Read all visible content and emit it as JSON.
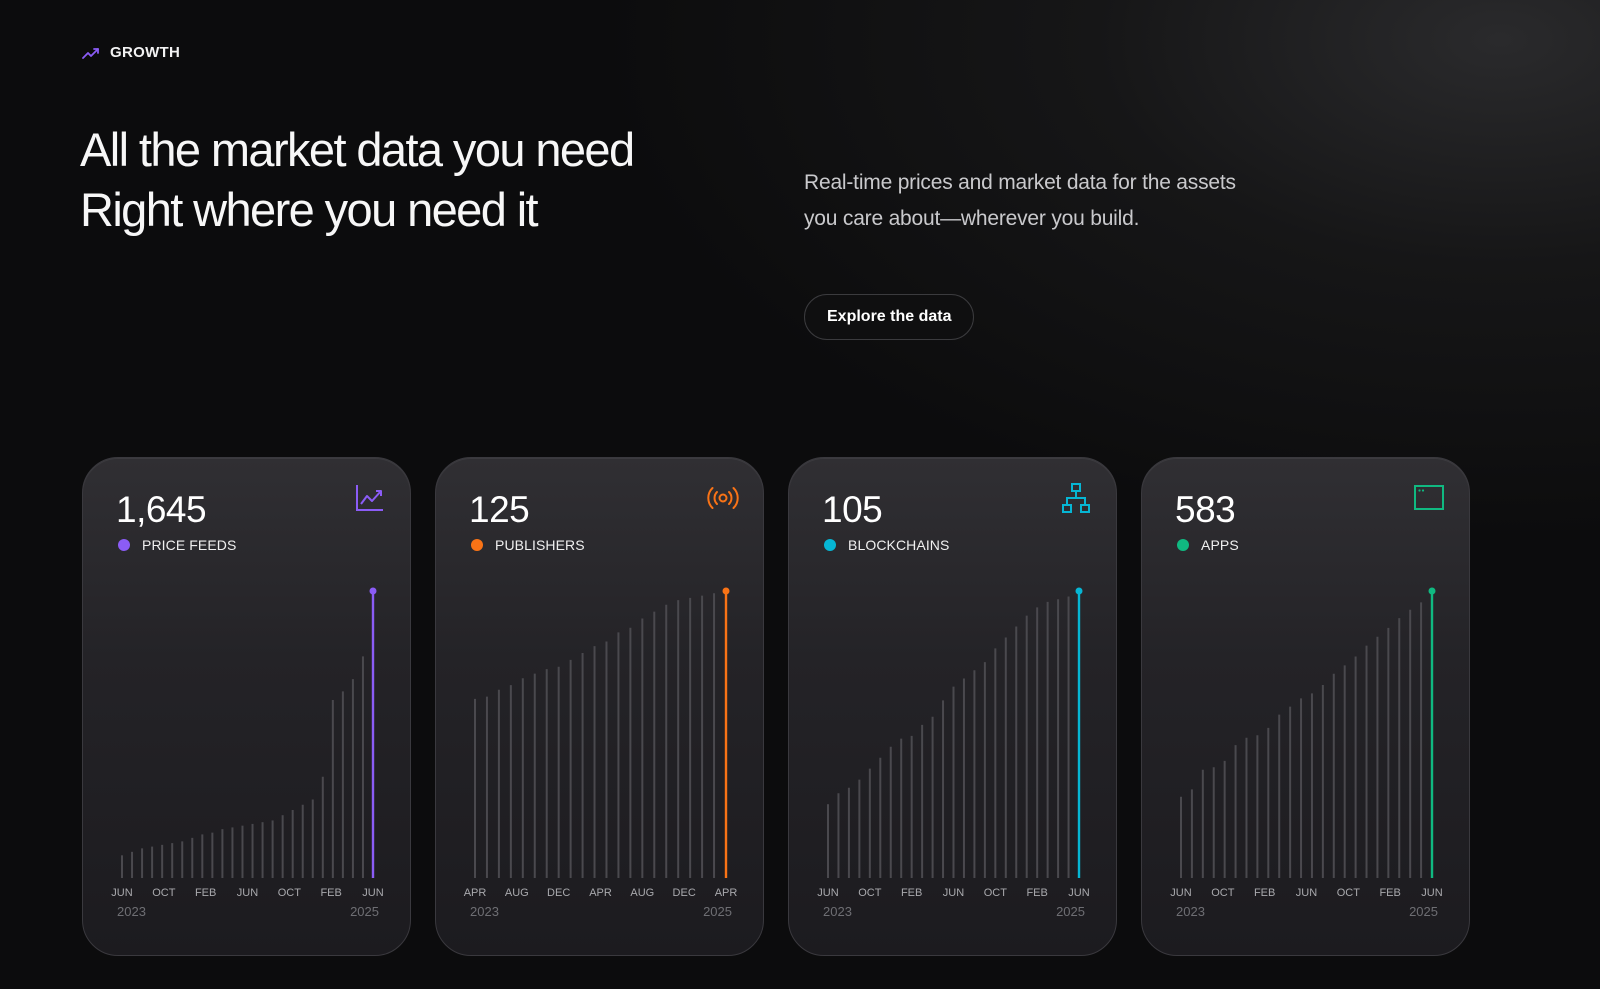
{
  "eyebrow": {
    "icon": "trend-up-icon",
    "label": "GROWTH",
    "color": "#8b5cf6"
  },
  "hero": {
    "line1": "All the market data you need",
    "line2": "Right where you need it",
    "subtext": "Real-time prices and market data for the assets you care about—wherever you build.",
    "cta_label": "Explore the data"
  },
  "cards": [
    {
      "value": "1,645",
      "label": "PRICE FEEDS",
      "color": "#8b5cf6",
      "icon": "line-chart-icon",
      "ticks": [
        "JUN",
        "OCT",
        "FEB",
        "JUN",
        "OCT",
        "FEB",
        "JUN"
      ],
      "year_start": "2023",
      "year_end": "2025"
    },
    {
      "value": "125",
      "label": "PUBLISHERS",
      "color": "#f97316",
      "icon": "broadcast-icon",
      "ticks": [
        "APR",
        "AUG",
        "DEC",
        "APR",
        "AUG",
        "DEC",
        "APR"
      ],
      "year_start": "2023",
      "year_end": "2025"
    },
    {
      "value": "105",
      "label": "BLOCKCHAINS",
      "color": "#06b6d4",
      "icon": "network-icon",
      "ticks": [
        "JUN",
        "OCT",
        "FEB",
        "JUN",
        "OCT",
        "FEB",
        "JUN"
      ],
      "year_start": "2023",
      "year_end": "2025"
    },
    {
      "value": "583",
      "label": "APPS",
      "color": "#10b981",
      "icon": "app-window-icon",
      "ticks": [
        "JUN",
        "OCT",
        "FEB",
        "JUN",
        "OCT",
        "FEB",
        "JUN"
      ],
      "year_start": "2023",
      "year_end": "2025"
    }
  ],
  "chart_data": [
    {
      "type": "bar",
      "xlabel": "",
      "ylabel": "",
      "values": [
        130,
        150,
        170,
        180,
        190,
        200,
        210,
        230,
        250,
        260,
        280,
        290,
        300,
        310,
        320,
        330,
        360,
        390,
        420,
        450,
        580,
        1020,
        1070,
        1140,
        1270,
        1645
      ],
      "ylim": [
        0,
        1645
      ]
    },
    {
      "type": "bar",
      "xlabel": "",
      "ylabel": "",
      "values": [
        78,
        79,
        82,
        84,
        87,
        89,
        91,
        92,
        95,
        98,
        101,
        103,
        107,
        109,
        113,
        116,
        119,
        121,
        122,
        123,
        124,
        125
      ],
      "ylim": [
        0,
        125
      ]
    },
    {
      "type": "bar",
      "xlabel": "",
      "ylabel": "",
      "values": [
        27,
        31,
        33,
        36,
        40,
        44,
        48,
        51,
        52,
        56,
        59,
        65,
        70,
        73,
        76,
        79,
        84,
        88,
        92,
        96,
        99,
        101,
        102,
        103,
        105
      ],
      "ylim": [
        0,
        105
      ]
    },
    {
      "type": "bar",
      "xlabel": "",
      "ylabel": "",
      "values": [
        165,
        180,
        220,
        225,
        238,
        270,
        285,
        290,
        305,
        332,
        348,
        365,
        375,
        392,
        415,
        432,
        450,
        472,
        490,
        508,
        528,
        545,
        560,
        583
      ],
      "ylim": [
        0,
        583
      ]
    }
  ]
}
